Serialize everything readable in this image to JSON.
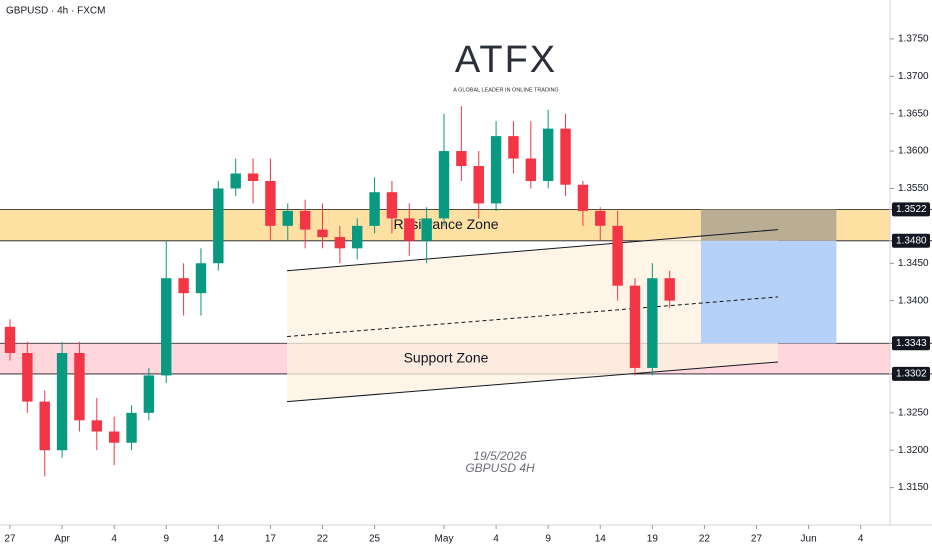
{
  "chart_data": {
    "type": "candlestick",
    "title": "GBPUSD · 4h · FXCM",
    "logo": "ATFX",
    "logo_tagline": "A GLOBAL LEADER IN ONLINE TRADING",
    "date_note": "19/5/2026",
    "symbol_note": "GBPUSD 4H",
    "xlim": [
      -0.576,
      50.69
    ],
    "ylim": [
      1.31,
      1.3802
    ],
    "xticks": [
      {
        "value": 0,
        "label": "27"
      },
      {
        "value": 3,
        "label": "Apr"
      },
      {
        "value": 6,
        "label": "4"
      },
      {
        "value": 9,
        "label": "9"
      },
      {
        "value": 12,
        "label": "14"
      },
      {
        "value": 15,
        "label": "17"
      },
      {
        "value": 18,
        "label": "22"
      },
      {
        "value": 21,
        "label": "25"
      },
      {
        "value": 25,
        "label": "May"
      },
      {
        "value": 28,
        "label": "4"
      },
      {
        "value": 31,
        "label": "9"
      },
      {
        "value": 34,
        "label": "14"
      },
      {
        "value": 37,
        "label": "19"
      },
      {
        "value": 40,
        "label": "22"
      },
      {
        "value": 43,
        "label": "27"
      },
      {
        "value": 46,
        "label": "Jun"
      },
      {
        "value": 49,
        "label": "4"
      }
    ],
    "yticks": [
      {
        "value": 1.315,
        "label": "1.3150"
      },
      {
        "value": 1.32,
        "label": "1.3200"
      },
      {
        "value": 1.325,
        "label": "1.3250"
      },
      {
        "value": 1.34,
        "label": "1.3400"
      },
      {
        "value": 1.345,
        "label": "1.3450"
      },
      {
        "value": 1.355,
        "label": "1.3550"
      },
      {
        "value": 1.36,
        "label": "1.3600"
      },
      {
        "value": 1.365,
        "label": "1.3650"
      },
      {
        "value": 1.37,
        "label": "1.3700"
      },
      {
        "value": 1.375,
        "label": "1.3750"
      }
    ],
    "up_color": "#089981",
    "down_color": "#f23645",
    "x": [
      0,
      1,
      2,
      3,
      4,
      5,
      6,
      7,
      8,
      9,
      10,
      11,
      12,
      13,
      14,
      15,
      16,
      17,
      18,
      19,
      20,
      21,
      22,
      23,
      24,
      25,
      26,
      27,
      28,
      29,
      30,
      31,
      32,
      33,
      34,
      35,
      36,
      37,
      38
    ],
    "open": [
      1.3365,
      1.333,
      1.3265,
      1.32,
      1.333,
      1.324,
      1.3225,
      1.321,
      1.325,
      1.33,
      1.343,
      1.341,
      1.345,
      1.355,
      1.357,
      1.356,
      1.35,
      1.352,
      1.3495,
      1.3485,
      1.347,
      1.35,
      1.3545,
      1.351,
      1.348,
      1.351,
      1.36,
      1.358,
      1.353,
      1.362,
      1.359,
      1.356,
      1.363,
      1.3555,
      1.352,
      1.35,
      1.342,
      1.331,
      1.343
    ],
    "high": [
      1.3375,
      1.3345,
      1.328,
      1.3345,
      1.3345,
      1.327,
      1.3245,
      1.326,
      1.331,
      1.348,
      1.345,
      1.347,
      1.356,
      1.359,
      1.359,
      1.359,
      1.353,
      1.3535,
      1.353,
      1.35,
      1.351,
      1.3565,
      1.356,
      1.353,
      1.3525,
      1.365,
      1.366,
      1.36,
      1.364,
      1.364,
      1.364,
      1.3655,
      1.365,
      1.356,
      1.3525,
      1.352,
      1.343,
      1.345,
      1.344
    ],
    "low": [
      1.332,
      1.325,
      1.3165,
      1.319,
      1.3225,
      1.32,
      1.318,
      1.32,
      1.324,
      1.329,
      1.338,
      1.338,
      1.344,
      1.354,
      1.353,
      1.348,
      1.348,
      1.347,
      1.347,
      1.345,
      1.3455,
      1.349,
      1.349,
      1.346,
      1.345,
      1.35,
      1.356,
      1.351,
      1.352,
      1.357,
      1.355,
      1.355,
      1.354,
      1.35,
      1.348,
      1.34,
      1.33,
      1.33,
      1.339
    ],
    "close": [
      1.333,
      1.3265,
      1.32,
      1.333,
      1.324,
      1.3225,
      1.321,
      1.325,
      1.33,
      1.343,
      1.341,
      1.345,
      1.355,
      1.357,
      1.356,
      1.35,
      1.352,
      1.3495,
      1.3485,
      1.347,
      1.35,
      1.3545,
      1.351,
      1.348,
      1.351,
      1.36,
      1.358,
      1.353,
      1.362,
      1.359,
      1.356,
      1.363,
      1.3555,
      1.352,
      1.35,
      1.342,
      1.331,
      1.343,
      1.34
    ],
    "zones": [
      {
        "name": "Resistance Zone",
        "low": 1.348,
        "high": 1.3522,
        "low_label": "1.3480",
        "high_label": "1.3522",
        "color": "#ffe0a3"
      },
      {
        "name": "Support Zone",
        "low": 1.3302,
        "high": 1.3343,
        "low_label": "1.3302",
        "high_label": "1.3343",
        "color": "#ffd6dc"
      }
    ],
    "channel": {
      "x": [
        15.96,
        44.24
      ],
      "upper": [
        1.344,
        1.3495
      ],
      "middle": [
        1.3352,
        1.3405
      ],
      "lower": [
        1.3265,
        1.3318
      ],
      "color": "#fdf1e0"
    },
    "position": {
      "x": [
        39.8,
        47.6
      ],
      "stop": 1.3522,
      "entry": 1.348,
      "target": 1.3343,
      "stop_color": "#b9ad93",
      "target_color": "#b6d1f7"
    }
  }
}
